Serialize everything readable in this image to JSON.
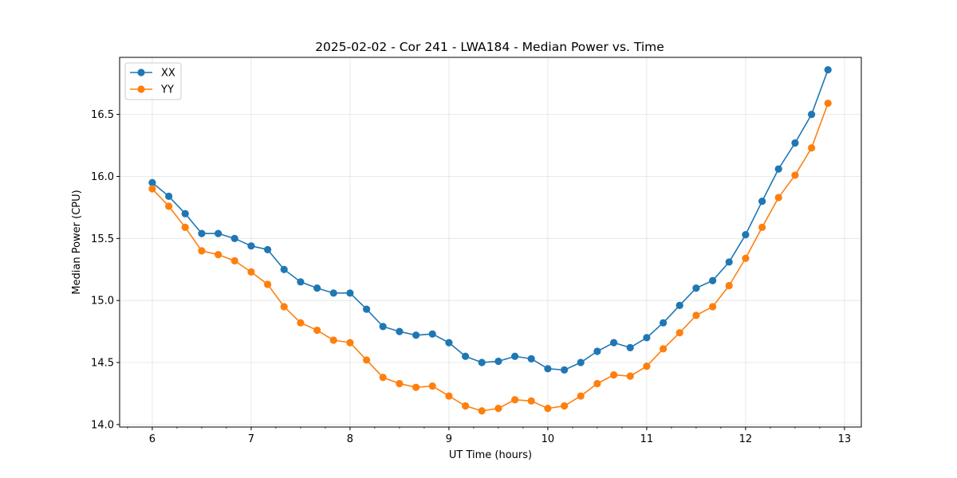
{
  "chart_data": {
    "type": "line",
    "title": "2025-02-02 - Cor 241 - LWA184 - Median Power vs. Time",
    "xlabel": "UT Time (hours)",
    "ylabel": "Median Power (CPU)",
    "xlim": [
      5.67,
      13.17
    ],
    "ylim": [
      13.98,
      16.96
    ],
    "xticks": [
      6,
      7,
      8,
      9,
      10,
      11,
      12,
      13
    ],
    "yticks": [
      14.0,
      14.5,
      15.0,
      15.5,
      16.0,
      16.5
    ],
    "xtick_labels": [
      "6",
      "7",
      "8",
      "9",
      "10",
      "11",
      "12",
      "13"
    ],
    "ytick_labels": [
      "14.0",
      "14.5",
      "15.0",
      "15.5",
      "16.0",
      "16.5"
    ],
    "grid": true,
    "legend_position": "upper-left",
    "x": [
      6.0,
      6.167,
      6.333,
      6.5,
      6.667,
      6.833,
      7.0,
      7.167,
      7.333,
      7.5,
      7.667,
      7.833,
      8.0,
      8.167,
      8.333,
      8.5,
      8.667,
      8.833,
      9.0,
      9.167,
      9.333,
      9.5,
      9.667,
      9.833,
      10.0,
      10.167,
      10.333,
      10.5,
      10.667,
      10.833,
      11.0,
      11.167,
      11.333,
      11.5,
      11.667,
      11.833,
      12.0,
      12.167,
      12.333,
      12.5,
      12.667,
      12.833
    ],
    "series": [
      {
        "name": "XX",
        "color": "#1f77b4",
        "values": [
          15.95,
          15.84,
          15.7,
          15.54,
          15.54,
          15.5,
          15.44,
          15.41,
          15.25,
          15.15,
          15.1,
          15.06,
          15.06,
          14.93,
          14.79,
          14.75,
          14.72,
          14.73,
          14.66,
          14.55,
          14.5,
          14.51,
          14.55,
          14.53,
          14.45,
          14.44,
          14.5,
          14.59,
          14.66,
          14.62,
          14.7,
          14.82,
          14.96,
          15.1,
          15.16,
          15.31,
          15.53,
          15.8,
          16.06,
          16.27,
          16.5,
          16.86
        ]
      },
      {
        "name": "YY",
        "color": "#ff7f0e",
        "values": [
          15.9,
          15.76,
          15.59,
          15.4,
          15.37,
          15.32,
          15.23,
          15.13,
          14.95,
          14.82,
          14.76,
          14.68,
          14.66,
          14.52,
          14.38,
          14.33,
          14.3,
          14.31,
          14.23,
          14.15,
          14.11,
          14.13,
          14.2,
          14.19,
          14.13,
          14.15,
          14.23,
          14.33,
          14.4,
          14.39,
          14.47,
          14.61,
          14.74,
          14.88,
          14.95,
          15.12,
          15.34,
          15.59,
          15.83,
          16.01,
          16.23,
          16.59
        ]
      }
    ]
  }
}
